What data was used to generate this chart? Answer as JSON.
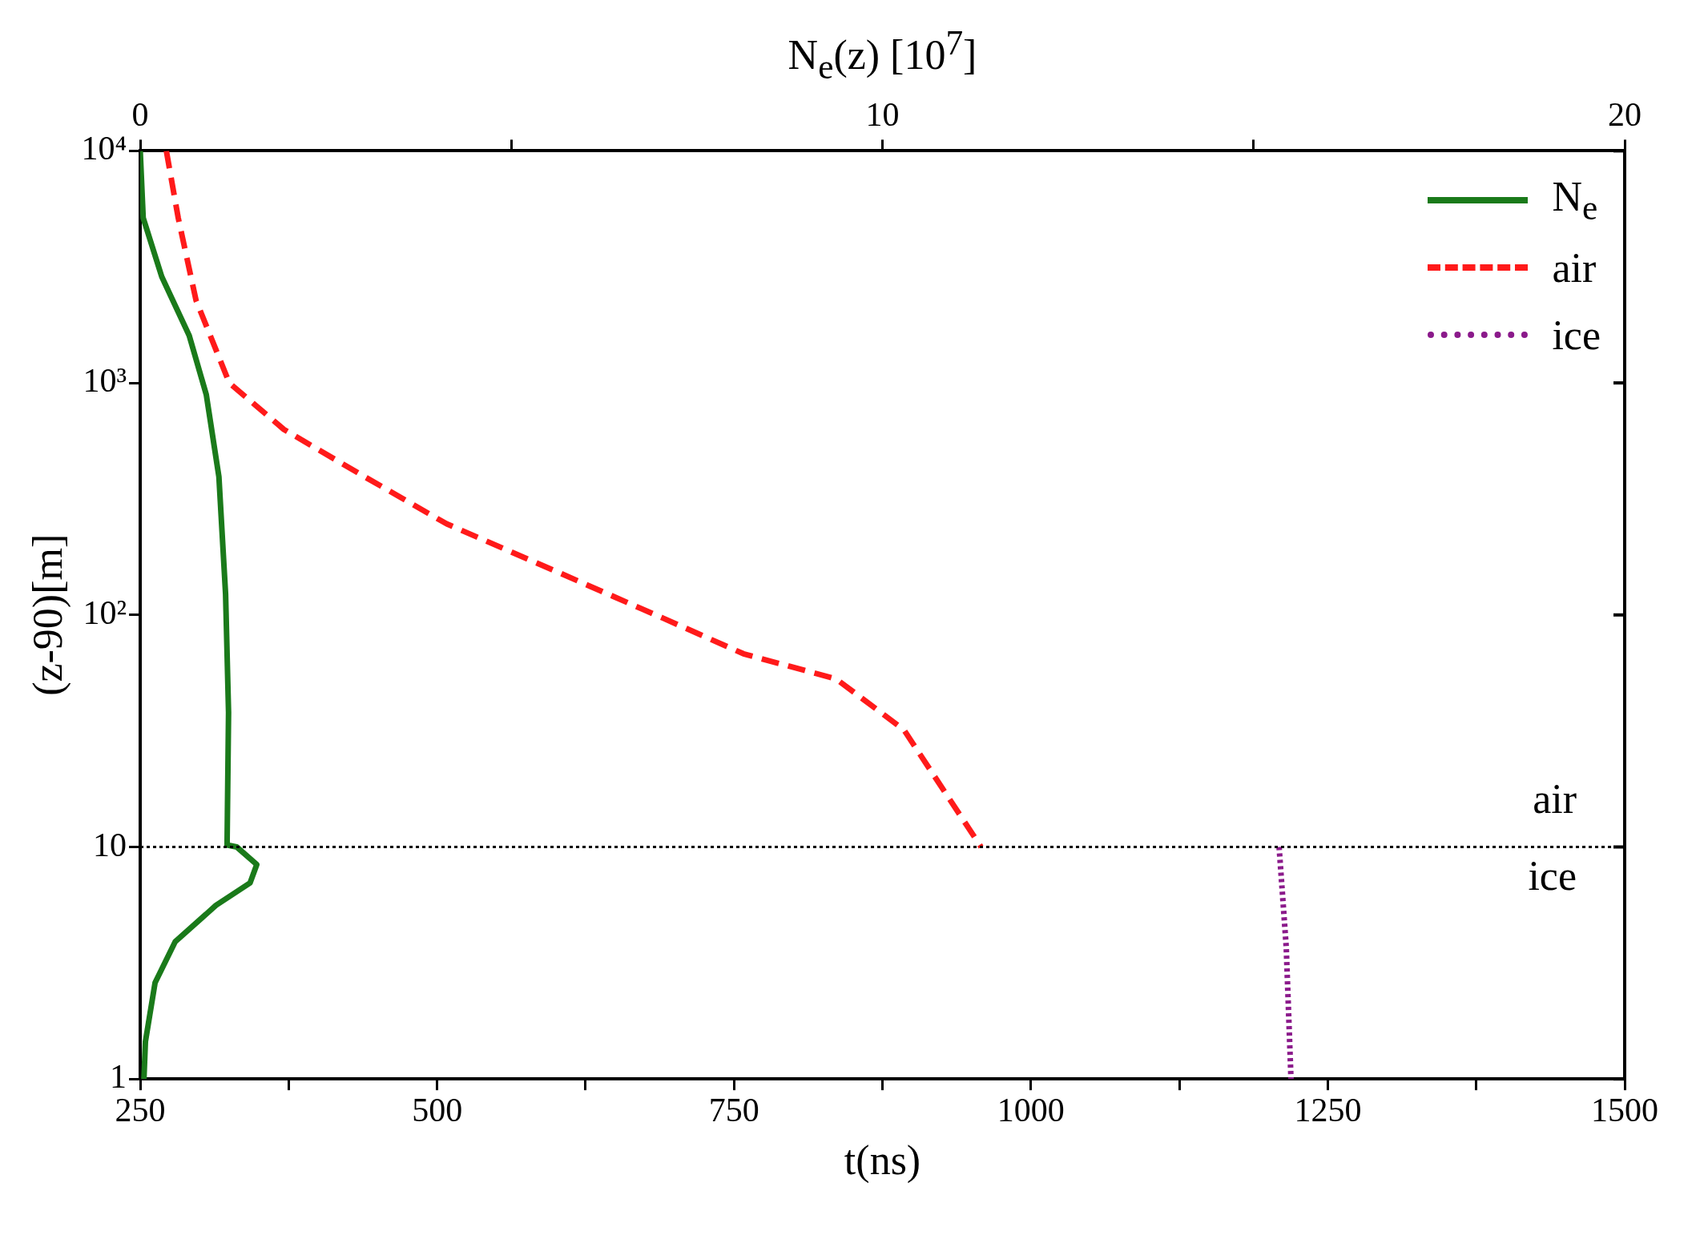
{
  "chart_data": {
    "type": "line",
    "xlabel": "t(ns)",
    "ylabel": "(z-90)[m]",
    "x2label": "N$_{e}$(z) [10$^{7}$]",
    "xlim": [
      250,
      1500
    ],
    "xticks": [
      250,
      {
        "value": 375,
        "label": null
      },
      500,
      {
        "value": 625,
        "label": null
      },
      750,
      {
        "value": 875,
        "label": null
      },
      1000,
      {
        "value": 1125,
        "label": null
      },
      1250,
      {
        "value": 1375,
        "label": null
      },
      1500
    ],
    "x2lim": [
      0,
      20
    ],
    "x2ticks": [
      0,
      {
        "value": 5,
        "label": null
      },
      10,
      {
        "value": 15,
        "label": null
      },
      20
    ],
    "ylim": [
      1,
      10000
    ],
    "yticks": [
      1,
      10,
      {
        "value": 100,
        "label": "10²"
      },
      {
        "value": 1000,
        "label": "10³"
      },
      {
        "value": 10000,
        "label": "10⁴"
      }
    ],
    "log": "y",
    "grid": false,
    "legend": "top right",
    "series": [
      {
        "name": "N$_{e}$",
        "color": "#1a7a1a",
        "line_style": "solid",
        "axis": "x2",
        "x": [
          0,
          0.04,
          0.29,
          0.66,
          0.89,
          1.06,
          1.15,
          1.19,
          1.17,
          1.3,
          1.57,
          1.48,
          1.02,
          0.47,
          0.2,
          0.07,
          0.05
        ],
        "values": [
          10000,
          5140,
          2870,
          1600,
          890,
          394,
          123,
          38,
          10.2,
          10,
          8.4,
          7,
          5.6,
          3.9,
          2.6,
          1.45,
          1
        ]
      },
      {
        "name": "air",
        "color": "#ff1a1a",
        "line_style": "dashed",
        "x": [
          272,
          282,
          297,
          325,
          371,
          439,
          508,
          599,
          690,
          758,
          836,
          893,
          958
        ],
        "values": [
          10000,
          5140,
          2270,
          1000,
          630,
          394,
          247,
          155,
          97,
          68,
          53,
          32,
          10
        ]
      },
      {
        "name": "ice",
        "color": "#8b1a8b",
        "line_style": "dotted",
        "x": [
          1209,
          1215,
          1219
        ],
        "values": [
          10,
          3.7,
          1
        ]
      }
    ],
    "ref_lines": [
      {
        "axis": "y",
        "value": 10,
        "color": "#000000",
        "line_style": "dotted"
      }
    ],
    "annotations": [
      "air",
      "ice"
    ]
  }
}
